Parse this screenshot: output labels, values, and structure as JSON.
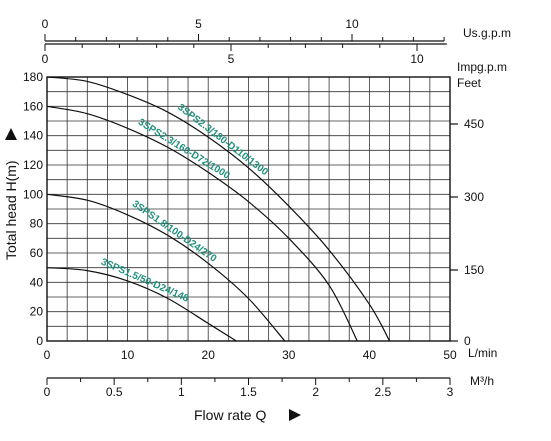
{
  "chart_data": {
    "type": "line",
    "xlabel": "Flow rate Q",
    "ylabel": "Total head H(m)",
    "grid": true,
    "axes": {
      "lmin": {
        "unit": "L/min",
        "range": [
          0,
          50
        ],
        "ticks": [
          "0",
          "10",
          "20",
          "30",
          "40",
          "50"
        ]
      },
      "m3h": {
        "unit": "M³/h",
        "range": [
          0,
          3
        ],
        "ticks": [
          "0",
          "0.5",
          "1",
          "1.5",
          "2",
          "2.5",
          "3"
        ]
      },
      "usgpm": {
        "unit": "Us.g.p.m",
        "ticks": [
          "0",
          "5",
          "10"
        ]
      },
      "impgpm": {
        "unit": "Impg.p.m",
        "ticks": [
          "0",
          "5",
          "10"
        ]
      },
      "head_m": {
        "range": [
          0,
          180
        ],
        "ticks": [
          "0",
          "20",
          "40",
          "60",
          "80",
          "100",
          "120",
          "140",
          "160",
          "180"
        ]
      },
      "feet": {
        "unit": "Feet",
        "ticks": [
          "0",
          "150",
          "300",
          "450"
        ]
      }
    },
    "series": [
      {
        "name": "3SPS1.5/50-D24/148",
        "color": "#1f8f7a",
        "x": [
          0,
          5,
          10,
          15,
          20,
          23.5
        ],
        "y": [
          50,
          48,
          41,
          29,
          12,
          0
        ]
      },
      {
        "name": "3SPS1.8/100-D24/270",
        "color": "#1f8f7a",
        "x": [
          0,
          5,
          10,
          15,
          20,
          25,
          29.5
        ],
        "y": [
          100,
          96,
          86,
          72,
          53,
          29,
          0
        ]
      },
      {
        "name": "3SPS2.3/160-D72/1000",
        "color": "#1f8f7a",
        "x": [
          0,
          5,
          10,
          15,
          20,
          25,
          30,
          35,
          38.5
        ],
        "y": [
          160,
          155,
          145,
          132,
          115,
          95,
          70,
          38,
          0
        ]
      },
      {
        "name": "3SPS2.3/180-D110/1300",
        "color": "#1f8f7a",
        "x": [
          0,
          5,
          10,
          15,
          20,
          25,
          30,
          35,
          40,
          42.5
        ],
        "y": [
          180,
          177,
          168,
          156,
          139,
          118,
          92,
          62,
          25,
          0
        ]
      }
    ]
  }
}
